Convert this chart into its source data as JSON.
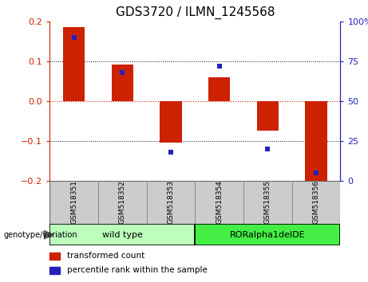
{
  "title": "GDS3720 / ILMN_1245568",
  "categories": [
    "GSM518351",
    "GSM518352",
    "GSM518353",
    "GSM518354",
    "GSM518355",
    "GSM518356"
  ],
  "bar_values": [
    0.185,
    0.092,
    -0.105,
    0.06,
    -0.075,
    -0.205
  ],
  "dot_values": [
    90,
    68,
    18,
    72,
    20,
    5
  ],
  "ylim_left": [
    -0.2,
    0.2
  ],
  "ylim_right": [
    0,
    100
  ],
  "bar_color": "#cc2200",
  "dot_color": "#2222bb",
  "zero_line_color": "#cc2200",
  "grid_color": "#111111",
  "groups": [
    {
      "label": "wild type",
      "indices": [
        0,
        1,
        2
      ],
      "color": "#bbffbb",
      "edge": "#000000"
    },
    {
      "label": "RORalpha1delDE",
      "indices": [
        3,
        4,
        5
      ],
      "color": "#44ee44",
      "edge": "#000000"
    }
  ],
  "legend_items": [
    {
      "label": "transformed count",
      "color": "#cc2200"
    },
    {
      "label": "percentile rank within the sample",
      "color": "#2222bb"
    }
  ],
  "title_fontsize": 11,
  "genotype_label": "genotype/variation",
  "bg_color": "#ffffff",
  "left_tick_color": "#cc2200",
  "right_tick_color": "#2222bb",
  "sample_box_color": "#cccccc",
  "sample_box_edge": "#888888",
  "left_yticks": [
    -0.2,
    -0.1,
    0,
    0.1,
    0.2
  ],
  "right_yticks": [
    0,
    25,
    50,
    75,
    100
  ],
  "right_yticklabels": [
    "0",
    "25",
    "50",
    "75",
    "100%"
  ]
}
